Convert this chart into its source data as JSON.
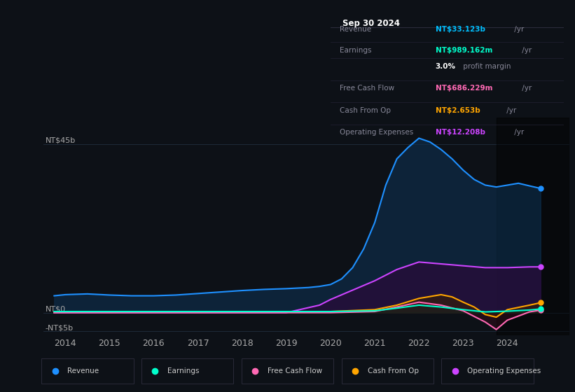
{
  "bg_color": "#0d1117",
  "plot_bg_color": "#0d1117",
  "grid_color": "#1e2a3a",
  "text_color": "#aaaaaa",
  "info_box": {
    "date": "Sep 30 2024",
    "rows": [
      {
        "label": "Revenue",
        "value": "NT$33.123b",
        "suffix": "/yr",
        "value_color": "#00bfff"
      },
      {
        "label": "Earnings",
        "value": "NT$989.162m",
        "suffix": "/yr",
        "value_color": "#00ffcc"
      },
      {
        "label": "",
        "value": "3.0%",
        "suffix": " profit margin",
        "value_color": "#ffffff"
      },
      {
        "label": "Free Cash Flow",
        "value": "NT$686.229m",
        "suffix": "/yr",
        "value_color": "#ff69b4"
      },
      {
        "label": "Cash From Op",
        "value": "NT$2.653b",
        "suffix": "/yr",
        "value_color": "#ffa500"
      },
      {
        "label": "Operating Expenses",
        "value": "NT$12.208b",
        "suffix": "/yr",
        "value_color": "#cc44ff"
      }
    ]
  },
  "ylim": [
    -6,
    52
  ],
  "yticks": [
    -5,
    0,
    45
  ],
  "ytick_labels": [
    "-NT$5b",
    "NT$0",
    "NT$45b"
  ],
  "xlim": [
    2013.5,
    2025.4
  ],
  "xticks": [
    2014,
    2015,
    2016,
    2017,
    2018,
    2019,
    2020,
    2021,
    2022,
    2023,
    2024
  ],
  "revenue": {
    "color": "#1e90ff",
    "fill_color": "#0d3050",
    "label": "Revenue",
    "x": [
      2013.75,
      2014.0,
      2014.5,
      2015.0,
      2015.5,
      2016.0,
      2016.5,
      2017.0,
      2017.5,
      2018.0,
      2018.5,
      2019.0,
      2019.5,
      2019.75,
      2020.0,
      2020.25,
      2020.5,
      2020.75,
      2021.0,
      2021.25,
      2021.5,
      2021.75,
      2022.0,
      2022.25,
      2022.5,
      2022.75,
      2023.0,
      2023.25,
      2023.5,
      2023.75,
      2024.0,
      2024.25,
      2024.5,
      2024.75
    ],
    "y": [
      4.5,
      4.8,
      5.0,
      4.7,
      4.5,
      4.5,
      4.7,
      5.1,
      5.5,
      5.9,
      6.2,
      6.4,
      6.7,
      7.0,
      7.5,
      9.0,
      12.0,
      17.0,
      24.0,
      34.0,
      41.0,
      44.0,
      46.5,
      45.5,
      43.5,
      41.0,
      38.0,
      35.5,
      34.0,
      33.5,
      34.0,
      34.5,
      33.8,
      33.123
    ]
  },
  "earnings": {
    "color": "#00ffcc",
    "fill_color": "#003322",
    "label": "Earnings",
    "x": [
      2013.75,
      2014.0,
      2015.0,
      2016.0,
      2017.0,
      2018.0,
      2019.0,
      2020.0,
      2021.0,
      2021.5,
      2022.0,
      2022.5,
      2023.0,
      2023.5,
      2024.0,
      2024.5,
      2024.75
    ],
    "y": [
      0.3,
      0.3,
      0.3,
      0.3,
      0.3,
      0.3,
      0.3,
      0.3,
      0.5,
      1.2,
      2.0,
      1.5,
      0.8,
      0.2,
      0.4,
      0.7,
      0.989
    ]
  },
  "free_cash_flow": {
    "color": "#ff69b4",
    "fill_color": "#3a0a1a",
    "label": "Free Cash Flow",
    "x": [
      2013.75,
      2014.0,
      2015.0,
      2016.0,
      2017.0,
      2018.0,
      2019.0,
      2020.0,
      2021.0,
      2021.5,
      2022.0,
      2022.5,
      2023.0,
      2023.5,
      2023.75,
      2024.0,
      2024.5,
      2024.75
    ],
    "y": [
      0.0,
      0.0,
      0.0,
      0.0,
      0.0,
      0.0,
      0.0,
      0.0,
      0.3,
      1.5,
      2.8,
      2.0,
      0.5,
      -2.5,
      -4.5,
      -2.0,
      0.2,
      0.686
    ]
  },
  "cash_from_op": {
    "color": "#ffa500",
    "fill_color": "#3a2000",
    "label": "Cash From Op",
    "x": [
      2013.75,
      2014.0,
      2015.0,
      2016.0,
      2017.0,
      2018.0,
      2019.0,
      2020.0,
      2021.0,
      2021.5,
      2022.0,
      2022.5,
      2022.75,
      2023.0,
      2023.25,
      2023.5,
      2023.75,
      2024.0,
      2024.5,
      2024.75
    ],
    "y": [
      0.1,
      0.2,
      0.1,
      0.2,
      0.1,
      0.2,
      0.2,
      0.3,
      0.8,
      2.0,
      3.8,
      4.8,
      4.2,
      2.8,
      1.5,
      -0.5,
      -1.2,
      0.8,
      2.0,
      2.653
    ]
  },
  "operating_expenses": {
    "color": "#cc44ff",
    "fill_color": "#2a0a3a",
    "label": "Operating Expenses",
    "x": [
      2013.75,
      2014.0,
      2015.0,
      2016.0,
      2017.0,
      2018.0,
      2019.0,
      2019.75,
      2020.0,
      2020.5,
      2021.0,
      2021.5,
      2022.0,
      2022.5,
      2023.0,
      2023.5,
      2024.0,
      2024.5,
      2024.75
    ],
    "y": [
      0.0,
      0.0,
      0.0,
      0.0,
      0.0,
      0.0,
      0.0,
      2.0,
      3.5,
      6.0,
      8.5,
      11.5,
      13.5,
      13.0,
      12.5,
      12.0,
      12.0,
      12.2,
      12.208
    ]
  },
  "legend": [
    {
      "label": "Revenue",
      "color": "#1e90ff"
    },
    {
      "label": "Earnings",
      "color": "#00ffcc"
    },
    {
      "label": "Free Cash Flow",
      "color": "#ff69b4"
    },
    {
      "label": "Cash From Op",
      "color": "#ffa500"
    },
    {
      "label": "Operating Expenses",
      "color": "#cc44ff"
    }
  ]
}
